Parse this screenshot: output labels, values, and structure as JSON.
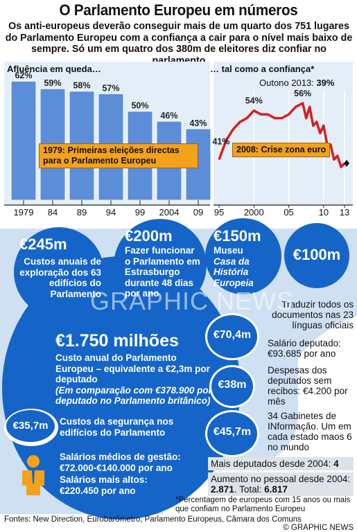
{
  "title": "O Parlamento Europeu em números",
  "subtitle": "Os anti-europeus deverão conseguir mais de um quarto dos 751 lugares do Parlamento Europeu com a confiança a cair para o nível mais baixo de sempre. Só um em quatro dos 380m de eleitores diz confiar no parlamento",
  "chart_data": [
    {
      "type": "bar",
      "title": "Afluência em queda…",
      "categories": [
        "1979",
        "84",
        "89",
        "94",
        "99",
        "2004",
        "09"
      ],
      "values": [
        62,
        59,
        58,
        57,
        50,
        46,
        43
      ],
      "value_labels": [
        "62%",
        "59%",
        "58%",
        "57%",
        "50%",
        "46%",
        "43%"
      ],
      "ylim": [
        0,
        70
      ],
      "color": "#5b8dd9",
      "annotation": "1979: Primeiras eleições directas para o Parlamento Europeu"
    },
    {
      "type": "line",
      "title": "… tal como a confiança*",
      "x_ticks": [
        "95",
        "2000",
        "05",
        "10",
        "13"
      ],
      "x": [
        1995,
        1996,
        1997,
        1998,
        1999,
        2000,
        2001,
        2002,
        2003,
        2004,
        2005,
        2006,
        2007,
        2007.5,
        2008,
        2008.5,
        2009,
        2009.5,
        2010,
        2010.5,
        2011,
        2011.5,
        2012,
        2012.5,
        2013
      ],
      "y": [
        41,
        46,
        49,
        51,
        52,
        54,
        53,
        53,
        52,
        52,
        53,
        55,
        56,
        52,
        55,
        50,
        51,
        48,
        50,
        45,
        45,
        41,
        42,
        39,
        40
      ],
      "ylim": [
        30,
        65
      ],
      "xlim": [
        1995,
        2013
      ],
      "color": "#d62020",
      "labels": [
        "41%",
        "54%",
        "56%"
      ],
      "top_note": "Outono 2013:",
      "top_note_value": "39%",
      "annotation": "2008: Crise zona euro"
    }
  ],
  "costs": {
    "c245": {
      "value": "€245m",
      "text": "Custos anuais de exploração dos 63 edifícios do Parlamento"
    },
    "c200": {
      "value": "€200m",
      "text": "Fazer funcionar o Parlamento em Estrasburgo durante 48 dias por ano"
    },
    "c150": {
      "value": "€150m",
      "text1": "Museu",
      "text2": "Casa da História Europeia"
    },
    "c100": {
      "value": "€100m",
      "text": "Traduzir todos os documentos nas 23 línguas oficiais"
    },
    "big": {
      "value": "€1.750 milhões",
      "text": "Custo anual do Parlamento Europeu – equivalente a €2,3m por deputado",
      "text_it": "(Em comparação com €378.900 por deputado no Parlamento britânico)"
    },
    "c35": {
      "value": "€35,7m",
      "text": "Custos da segurança nos edifícios do Parlamento"
    },
    "salaries": {
      "line1": "Salários médios de gestão:",
      "line2": "€72.000-€140.000 por ano",
      "line3": "Salários mais altos:",
      "line4": "€220.450 por ano"
    },
    "c70": {
      "value": "€70,4m",
      "text": "Salário deputado: €93.685 por ano"
    },
    "c38": {
      "value": "€38m",
      "text": "Despesas dos deputados sem recibos: €4.200 por mês"
    },
    "c45": {
      "value": "€45,7m",
      "text": "34 Gabinetes de INformação. Um em cada estado maos 6 no mundo"
    },
    "more_deputies": {
      "label": "Mais deputados desde 2004:",
      "value": "4"
    },
    "staff": {
      "label": "Aumento no pessoal desde 2004:",
      "v1": "2.871",
      "sep": "Total:",
      "v2": "6.817"
    }
  },
  "watermark": "GRAPHIC NEWS",
  "footnote": "*Percentagem de europeus com 15 anos ou mais que confiam no Parlamento Europeu",
  "footer": {
    "sources": "Fontes: New Direction, Eurobarómetro, Parlamento Europeus, Câmara dos Comuns",
    "credit": "© GRAPHIC NEWS"
  },
  "colors": {
    "blue": "#1565c8",
    "light_blue": "#5b8dd9",
    "panel": "#e3eef8",
    "orange": "#f4a11b",
    "red": "#d62020"
  }
}
